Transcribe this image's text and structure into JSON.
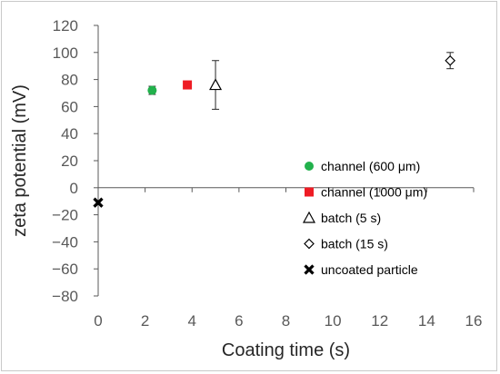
{
  "chart_data": {
    "type": "scatter",
    "title": "",
    "xlabel": "Coating time (s)",
    "ylabel": "zeta potential (mV)",
    "xlim": [
      0,
      16
    ],
    "ylim": [
      -80,
      120
    ],
    "x_ticks": [
      0,
      2,
      4,
      6,
      8,
      10,
      12,
      14,
      16
    ],
    "y_ticks": [
      -80,
      -60,
      -40,
      -20,
      0,
      20,
      40,
      60,
      80,
      100,
      120
    ],
    "grid": false,
    "legend_position": "right-bottom",
    "series": [
      {
        "name": "channel (600 μm)",
        "marker": "circle",
        "color": "#22b14c",
        "x": [
          2.3
        ],
        "y": [
          72
        ],
        "error": [
          3
        ]
      },
      {
        "name": "channel (1000 μm)",
        "marker": "square",
        "color": "#ee1c24",
        "x": [
          3.8
        ],
        "y": [
          76
        ],
        "error": [
          1
        ]
      },
      {
        "name": "batch (5 s)",
        "marker": "triangle-open",
        "color": "#000000",
        "x": [
          5
        ],
        "y": [
          76
        ],
        "error": [
          18
        ]
      },
      {
        "name": "batch (15 s)",
        "marker": "diamond-open",
        "color": "#000000",
        "x": [
          15
        ],
        "y": [
          94
        ],
        "error": [
          6
        ]
      },
      {
        "name": "uncoated particle",
        "marker": "x-bold",
        "color": "#000000",
        "x": [
          0
        ],
        "y": [
          -11
        ],
        "error": [
          0
        ]
      }
    ]
  }
}
